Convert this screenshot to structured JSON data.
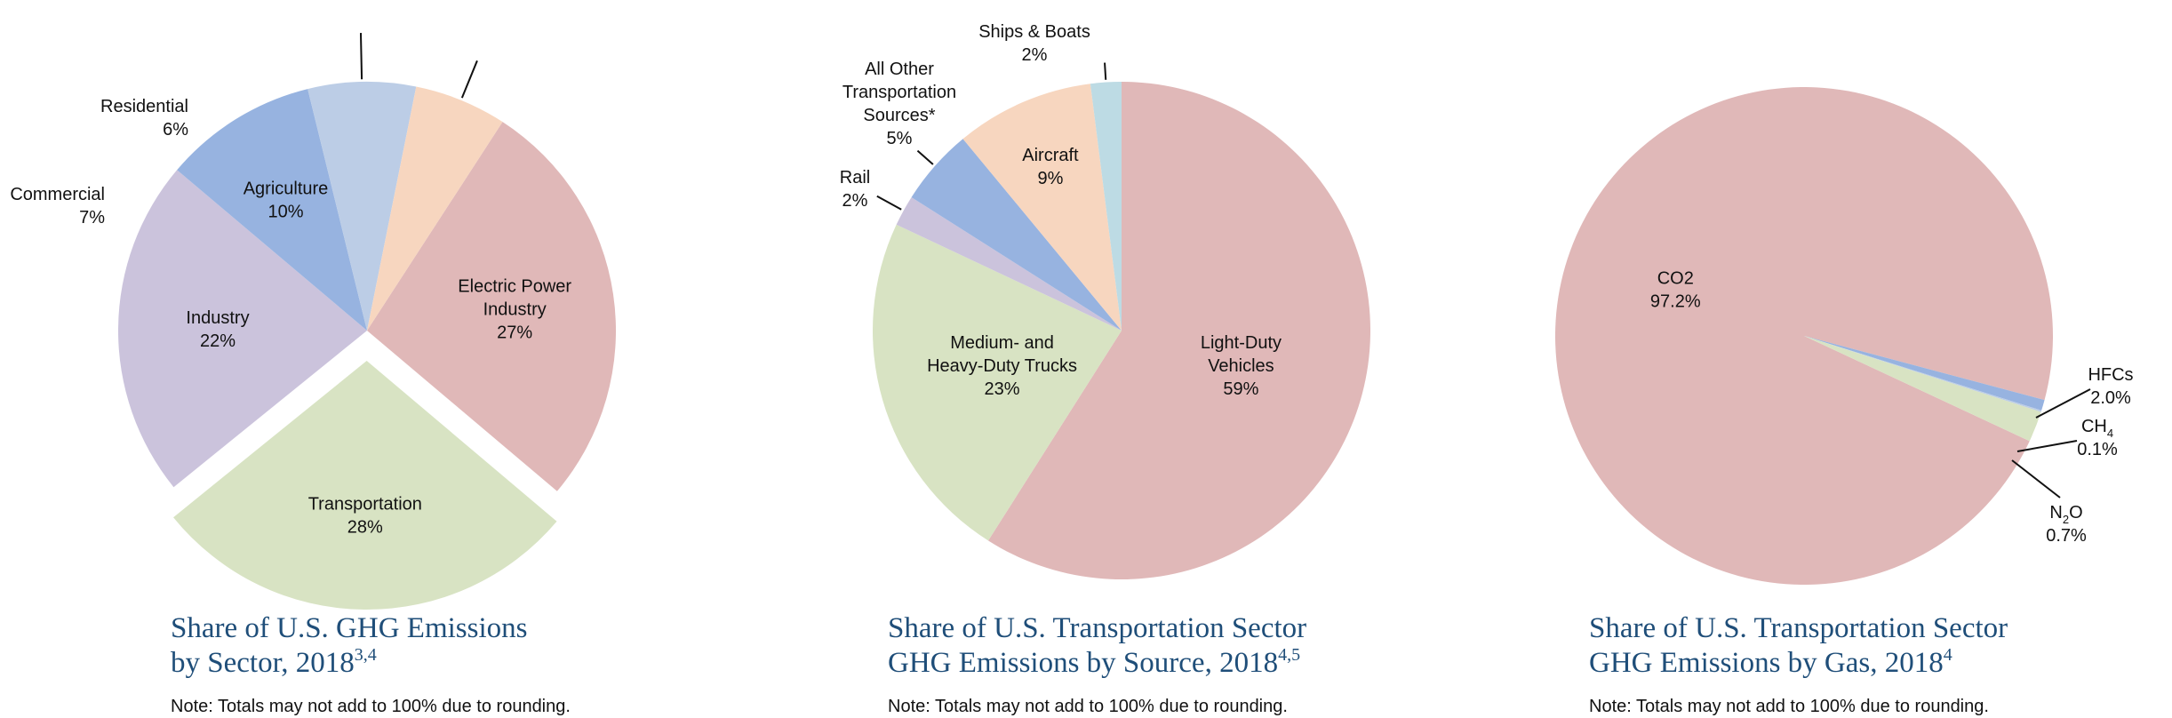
{
  "chart_data": [
    {
      "type": "pie",
      "title": "Share of U.S. GHG Emissions by Sector, 2018",
      "title_lines": [
        "Share of U.S. GHG Emissions",
        "by Sector, 2018"
      ],
      "title_sup": "3,4",
      "note": "Note: Totals may not add to 100% due to rounding.",
      "exploded_slice": "Transportation",
      "slices": [
        {
          "label": "Electric Power Industry",
          "lines": [
            "Electric Power",
            "Industry"
          ],
          "value": 27,
          "display": "27%",
          "color": "#e0b8b8"
        },
        {
          "label": "Transportation",
          "lines": [
            "Transportation"
          ],
          "value": 28,
          "display": "28%",
          "color": "#d8e3c3"
        },
        {
          "label": "Industry",
          "lines": [
            "Industry"
          ],
          "value": 22,
          "display": "22%",
          "color": "#cbc3dc"
        },
        {
          "label": "Agriculture",
          "lines": [
            "Agriculture"
          ],
          "value": 10,
          "display": "10%",
          "color": "#97b3e0"
        },
        {
          "label": "Commercial",
          "lines": [
            "Commercial"
          ],
          "value": 7,
          "display": "7%",
          "color": "#bccde6"
        },
        {
          "label": "Residential",
          "lines": [
            "Residential"
          ],
          "value": 6,
          "display": "6%",
          "color": "#f7d6bf"
        }
      ]
    },
    {
      "type": "pie",
      "title": "Share of U.S. Transportation Sector GHG Emissions by Source, 2018",
      "title_lines": [
        "Share of U.S. Transportation Sector",
        "GHG Emissions by Source, 2018"
      ],
      "title_sup": "4,5",
      "note": "Note: Totals may not add to 100% due to rounding.",
      "slices": [
        {
          "label": "Light-Duty Vehicles",
          "lines": [
            "Light-Duty",
            "Vehicles"
          ],
          "value": 59,
          "display": "59%",
          "color": "#e0b8b8"
        },
        {
          "label": "Medium- and Heavy-Duty Trucks",
          "lines": [
            "Medium- and",
            "Heavy-Duty Trucks"
          ],
          "value": 23,
          "display": "23%",
          "color": "#d8e3c3"
        },
        {
          "label": "Rail",
          "lines": [
            "Rail"
          ],
          "value": 2,
          "display": "2%",
          "color": "#cbc3dc"
        },
        {
          "label": "All Other Transportation Sources*",
          "lines": [
            "All Other",
            "Transportation",
            "Sources*"
          ],
          "value": 5,
          "display": "5%",
          "color": "#97b3e0"
        },
        {
          "label": "Aircraft",
          "lines": [
            "Aircraft"
          ],
          "value": 9,
          "display": "9%",
          "color": "#f7d6bf"
        },
        {
          "label": "Ships & Boats",
          "lines": [
            "Ships & Boats"
          ],
          "value": 2,
          "display": "2%",
          "color": "#bddbe4"
        }
      ]
    },
    {
      "type": "pie",
      "title": "Share of U.S. Transportation Sector GHG Emissions by Gas, 2018",
      "title_lines": [
        "Share of U.S. Transportation Sector",
        "GHG Emissions by Gas, 2018"
      ],
      "title_sup": "4",
      "note": "Note: Totals may not add to 100% due to rounding.",
      "slices": [
        {
          "label": "CO2",
          "base": "CO",
          "sub": "2",
          "value": 97.2,
          "display": "97.2%",
          "color": "#e0b8b8"
        },
        {
          "label": "N2O",
          "base": "N",
          "sub": "2",
          "suffix": "O",
          "value": 0.7,
          "display": "0.7%",
          "color": "#97b3e0"
        },
        {
          "label": "CH4",
          "base": "CH",
          "sub": "4",
          "value": 0.1,
          "display": "0.1%",
          "color": "#bccde6"
        },
        {
          "label": "HFCs",
          "base": "HFCs",
          "value": 2.0,
          "display": "2.0%",
          "color": "#d8e3c3"
        }
      ]
    }
  ]
}
